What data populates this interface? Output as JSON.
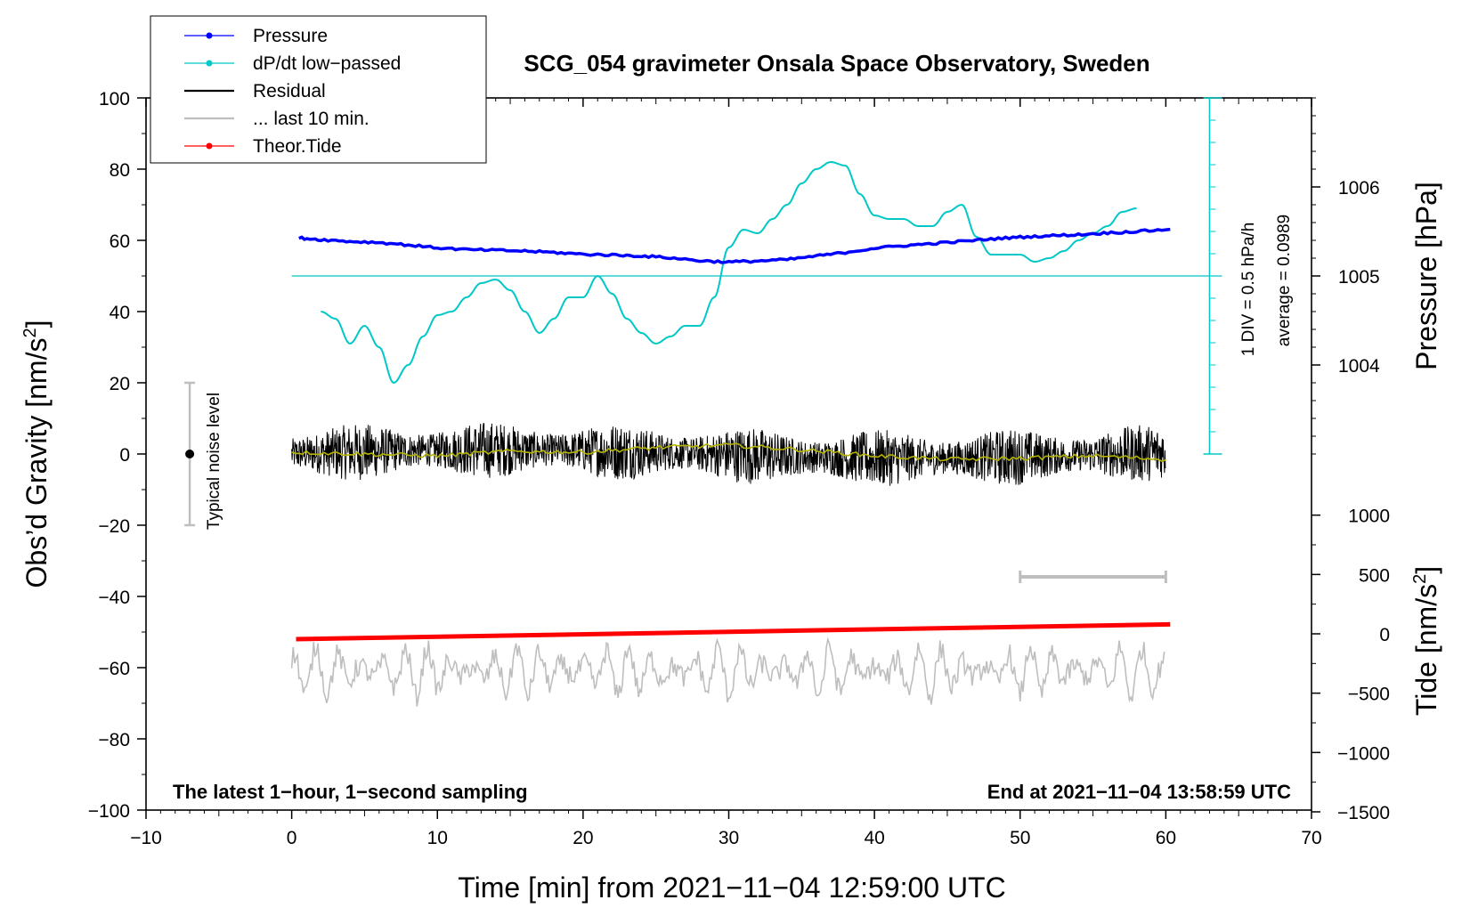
{
  "chart_data": {
    "type": "line",
    "title": "SCG_054 gravimeter Onsala Space Observatory, Sweden",
    "xlabel": "Time [min] from 2021−11−04 12:59:00 UTC",
    "ylabel_left": "Obs’d Gravity [nm/s",
    "ylabel_left_sup": "2",
    "ylabel_left_end": "]",
    "ylabel_right_pressure": "Pressure [hPa]",
    "ylabel_right_tide": "Tide [nm/s",
    "ylabel_right_tide_sup": "2",
    "ylabel_right_tide_end": "]",
    "xlim": [
      -10,
      70
    ],
    "ylim": [
      -100,
      100
    ],
    "x_ticks": [
      "−10",
      "0",
      "10",
      "20",
      "30",
      "40",
      "50",
      "60",
      "70"
    ],
    "y_ticks": [
      "−100",
      "−80",
      "−60",
      "−40",
      "−20",
      "0",
      "20",
      "40",
      "60",
      "80",
      "100"
    ],
    "pressure_ticks": [
      {
        "label": "1004",
        "value": 1004
      },
      {
        "label": "1005",
        "value": 1005
      },
      {
        "label": "1006",
        "value": 1006
      }
    ],
    "pressure_scale": {
      "ref_hpa": 1005,
      "ref_gravity": 50,
      "gravity_per_hpa": 25
    },
    "tide_ticks": [
      {
        "label": "1000",
        "value": 1000
      },
      {
        "label": "500",
        "value": 500
      },
      {
        "label": "0",
        "value": 0
      },
      {
        "label": "−500",
        "value": -500
      },
      {
        "label": "−1000",
        "value": -1000
      },
      {
        "label": "−1500",
        "value": -1500
      }
    ],
    "tide_scale": {
      "ref_tide": 0,
      "ref_gravity": -50.5,
      "gravity_per_unit": 0.03333
    },
    "legend": [
      {
        "label": "Pressure",
        "color": "#0000ff",
        "marker": true
      },
      {
        "label": "dP/dt low−passed",
        "color": "#00c8c8",
        "marker": true
      },
      {
        "label": "Residual",
        "color": "#000000",
        "marker": false
      },
      {
        "label": "... last 10 min.",
        "color": "#bebebe",
        "marker": false
      },
      {
        "label": "Theor.Tide",
        "color": "#ff0000",
        "marker": true
      }
    ],
    "series": [
      {
        "name": "Pressure",
        "color": "#0000ff",
        "axis": "left-gravity-equivalent",
        "x": [
          0.5,
          2,
          4,
          6,
          8,
          10,
          12,
          14,
          16,
          18,
          20,
          22,
          24,
          26,
          28,
          30,
          32,
          34,
          36,
          38,
          40,
          42,
          44,
          46,
          48,
          50,
          52,
          54,
          56,
          58,
          60.3
        ],
        "y": [
          60.7,
          60.2,
          59.7,
          59.4,
          58.7,
          57.9,
          57.4,
          57.2,
          57.0,
          56.6,
          56.1,
          55.9,
          55.6,
          55.1,
          54.3,
          53.9,
          54.2,
          54.6,
          55.6,
          56.6,
          57.8,
          58.5,
          59.1,
          59.7,
          60.4,
          60.9,
          61.3,
          61.6,
          62.1,
          62.5,
          63.1
        ]
      },
      {
        "name": "dP/dt low−passed",
        "color": "#00c8c8",
        "axis": "left",
        "x": [
          2,
          3,
          4,
          5,
          6,
          7,
          8,
          9,
          10,
          11,
          12,
          13,
          14,
          15,
          16,
          17,
          18,
          19,
          20,
          21,
          22,
          23,
          24,
          25,
          26,
          27,
          28,
          29,
          30,
          31,
          32,
          33,
          34,
          35,
          36,
          37,
          38,
          39,
          40,
          41,
          42,
          43,
          44,
          45,
          46,
          47,
          48,
          49,
          50,
          51,
          52,
          53,
          54,
          55,
          56,
          57,
          58
        ],
        "y": [
          40,
          38,
          31,
          36,
          30,
          20,
          25,
          33,
          39,
          40,
          44,
          48,
          49,
          46,
          40,
          34,
          38,
          44,
          44,
          50,
          45,
          38,
          34,
          31,
          33,
          36,
          36,
          44,
          58,
          63,
          62,
          66,
          70,
          76,
          80,
          82,
          81,
          73,
          67,
          66,
          66,
          64,
          64,
          68,
          70,
          61,
          56,
          56,
          56,
          54,
          55,
          57,
          60,
          62,
          64,
          68,
          69
        ]
      },
      {
        "name": "Residual (smoothed)",
        "color": "#b4b400",
        "axis": "left",
        "x": [
          0,
          5,
          10,
          15,
          20,
          25,
          30,
          35,
          40,
          45,
          50,
          55,
          60
        ],
        "y": [
          0.5,
          0,
          -0.5,
          0.8,
          0.5,
          1.8,
          2.5,
          1.2,
          -0.5,
          -1.5,
          -1.2,
          -0.5,
          -1.5
        ]
      },
      {
        "name": "Theor.Tide",
        "color": "#ff0000",
        "axis": "right-tide",
        "x": [
          0.3,
          60.3
        ],
        "y": [
          -45,
          80
        ]
      }
    ],
    "residual_noise_amplitude": 8,
    "last10_gravity_center": -61,
    "last10_gravity_amplitude": 10,
    "last10_span_bar": {
      "x_start": 50,
      "x_end": 60,
      "tide_value": 480
    },
    "noise_level_bar": {
      "x": -7,
      "y_low": -20,
      "y_high": 20,
      "y_point": 0
    },
    "dpdt_axis": {
      "x": 63,
      "y_zero": 0,
      "y_baseline": 50,
      "y_top": 100
    }
  },
  "annotations": {
    "noise_label": "Typical noise level",
    "dpdt_div": "1 DIV = 0.5 hPa/h",
    "dpdt_avg": "average = 0.0989",
    "bottom_left": "The latest 1−hour, 1−second sampling",
    "bottom_right": "End at 2021−11−04 13:58:59 UTC"
  }
}
